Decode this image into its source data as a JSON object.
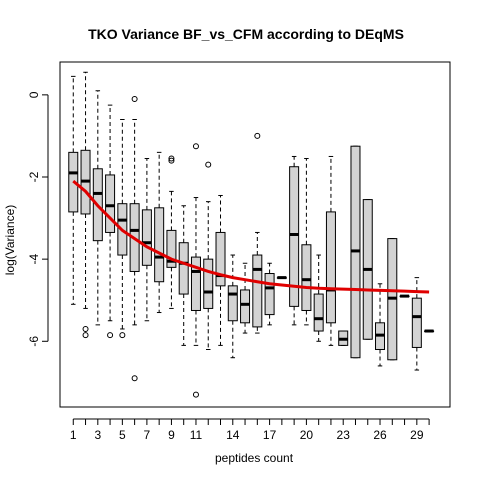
{
  "chart_data": {
    "type": "boxplot",
    "title": "TKO Variance BF_vs_CFM according to DEqMS",
    "xlabel": "peptides count",
    "ylabel": "log(Variance)",
    "ylim": [
      -7.6,
      0.8
    ],
    "yticks": [
      0,
      -2,
      -4,
      -6
    ],
    "xtick_labels": [
      "1",
      "3",
      "5",
      "7",
      "9",
      "11",
      "14",
      "17",
      "20",
      "23",
      "26",
      "29"
    ],
    "xtick_positions": [
      1,
      3,
      5,
      7,
      9,
      11,
      14,
      17,
      20,
      23,
      26,
      29
    ],
    "grid": false,
    "legend": "none",
    "colors": {
      "box_fill": "#d3d3d3",
      "fit_line": "#e00000",
      "outline": "#000000"
    },
    "boxes": [
      {
        "x": 1,
        "wlo": -5.1,
        "q1": -2.85,
        "med": -1.9,
        "q3": -1.4,
        "whi": 0.45,
        "outliers": []
      },
      {
        "x": 2,
        "wlo": -5.2,
        "q1": -2.9,
        "med": -2.1,
        "q3": -1.35,
        "whi": 0.55,
        "outliers": [
          -5.7,
          -5.85
        ]
      },
      {
        "x": 3,
        "wlo": -5.6,
        "q1": -3.55,
        "med": -2.4,
        "q3": -1.8,
        "whi": 0.1,
        "outliers": []
      },
      {
        "x": 4,
        "wlo": -5.5,
        "q1": -3.35,
        "med": -2.7,
        "q3": -1.95,
        "whi": -0.25,
        "outliers": [
          -5.85
        ]
      },
      {
        "x": 5,
        "wlo": -5.7,
        "q1": -3.9,
        "med": -3.05,
        "q3": -2.65,
        "whi": -0.6,
        "outliers": [
          -5.85
        ]
      },
      {
        "x": 6,
        "wlo": -5.6,
        "q1": -4.3,
        "med": -3.3,
        "q3": -2.65,
        "whi": -0.6,
        "outliers": [
          -0.1,
          -6.9
        ]
      },
      {
        "x": 7,
        "wlo": -5.5,
        "q1": -4.15,
        "med": -3.6,
        "q3": -2.8,
        "whi": -1.55,
        "outliers": []
      },
      {
        "x": 8,
        "wlo": -5.3,
        "q1": -4.55,
        "med": -3.95,
        "q3": -2.75,
        "whi": -1.4,
        "outliers": []
      },
      {
        "x": 9,
        "wlo": -5.2,
        "q1": -4.2,
        "med": -4.05,
        "q3": -3.3,
        "whi": -2.35,
        "outliers": [
          -1.55,
          -1.6
        ]
      },
      {
        "x": 10,
        "wlo": -6.1,
        "q1": -4.85,
        "med": -4.1,
        "q3": -3.6,
        "whi": -2.7,
        "outliers": []
      },
      {
        "x": 11,
        "wlo": -6.1,
        "q1": -5.25,
        "med": -4.3,
        "q3": -3.95,
        "whi": -2.5,
        "outliers": [
          -1.25,
          -7.3
        ]
      },
      {
        "x": 12,
        "wlo": -6.2,
        "q1": -5.2,
        "med": -4.8,
        "q3": -4.0,
        "whi": -2.6,
        "outliers": [
          -1.7
        ]
      },
      {
        "x": 13,
        "wlo": -6.1,
        "q1": -4.65,
        "med": -4.4,
        "q3": -3.35,
        "whi": -2.45,
        "outliers": []
      },
      {
        "x": 14,
        "wlo": -6.4,
        "q1": -5.5,
        "med": -4.85,
        "q3": -4.65,
        "whi": -3.9,
        "outliers": []
      },
      {
        "x": 15,
        "wlo": -5.8,
        "q1": -5.55,
        "med": -5.1,
        "q3": -4.75,
        "whi": -4.1,
        "outliers": []
      },
      {
        "x": 16,
        "wlo": -5.8,
        "q1": -5.65,
        "med": -4.25,
        "q3": -3.9,
        "whi": -3.35,
        "outliers": [
          -1.0
        ]
      },
      {
        "x": 17,
        "wlo": -5.6,
        "q1": -5.35,
        "med": -4.7,
        "q3": -4.35,
        "whi": -4.1,
        "outliers": []
      },
      {
        "x": 18,
        "wlo": -4.45,
        "q1": -4.45,
        "med": -4.45,
        "q3": -4.45,
        "whi": -4.45,
        "outliers": []
      },
      {
        "x": 19,
        "wlo": -5.6,
        "q1": -5.15,
        "med": -3.4,
        "q3": -1.75,
        "whi": -1.5,
        "outliers": []
      },
      {
        "x": 20,
        "wlo": -5.6,
        "q1": -5.25,
        "med": -4.5,
        "q3": -3.65,
        "whi": -1.55,
        "outliers": []
      },
      {
        "x": 21,
        "wlo": -6.0,
        "q1": -5.75,
        "med": -5.45,
        "q3": -4.85,
        "whi": -3.9,
        "outliers": []
      },
      {
        "x": 22,
        "wlo": -6.1,
        "q1": -5.55,
        "med": -4.75,
        "q3": -2.85,
        "whi": -1.5,
        "outliers": []
      },
      {
        "x": 23,
        "wlo": -6.1,
        "q1": -6.1,
        "med": -5.95,
        "q3": -5.75,
        "whi": -5.75,
        "outliers": []
      },
      {
        "x": 24,
        "wlo": -6.4,
        "q1": -6.4,
        "med": -3.8,
        "q3": -1.25,
        "whi": -1.25,
        "outliers": []
      },
      {
        "x": 25,
        "wlo": -5.95,
        "q1": -5.95,
        "med": -4.25,
        "q3": -2.55,
        "whi": -2.55,
        "outliers": []
      },
      {
        "x": 26,
        "wlo": -6.6,
        "q1": -6.2,
        "med": -5.85,
        "q3": -5.55,
        "whi": -4.6,
        "outliers": []
      },
      {
        "x": 27,
        "wlo": -6.45,
        "q1": -6.45,
        "med": -4.95,
        "q3": -3.5,
        "whi": -3.5,
        "outliers": []
      },
      {
        "x": 28,
        "wlo": -4.9,
        "q1": -4.9,
        "med": -4.9,
        "q3": -4.9,
        "whi": -4.9,
        "outliers": []
      },
      {
        "x": 29,
        "wlo": -6.7,
        "q1": -6.15,
        "med": -5.4,
        "q3": -4.95,
        "whi": -4.45,
        "outliers": []
      },
      {
        "x": 30,
        "wlo": -5.75,
        "q1": -5.75,
        "med": -5.75,
        "q3": -5.75,
        "whi": -5.75,
        "outliers": []
      }
    ],
    "fit_line": {
      "x": [
        1,
        2,
        3,
        4,
        5,
        6,
        7,
        8,
        9,
        10,
        11,
        12,
        13,
        14,
        15,
        16,
        17,
        18,
        19,
        20,
        21,
        22,
        23,
        24,
        25,
        26,
        27,
        28,
        29,
        30
      ],
      "y": [
        -2.1,
        -2.35,
        -2.7,
        -3.0,
        -3.3,
        -3.5,
        -3.7,
        -3.85,
        -4.0,
        -4.1,
        -4.2,
        -4.3,
        -4.38,
        -4.45,
        -4.5,
        -4.55,
        -4.6,
        -4.63,
        -4.66,
        -4.69,
        -4.71,
        -4.72,
        -4.73,
        -4.74,
        -4.75,
        -4.76,
        -4.77,
        -4.78,
        -4.79,
        -4.8
      ]
    }
  }
}
